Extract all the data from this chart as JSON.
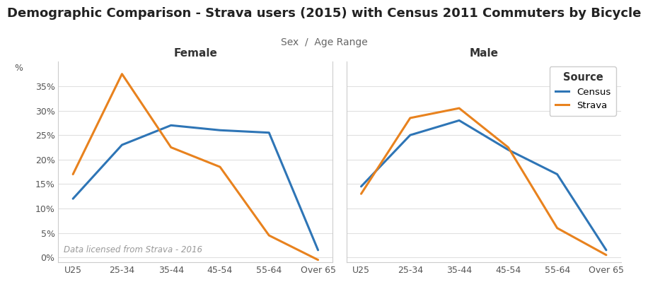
{
  "title": "Demographic Comparison - Strava users (2015) with Census 2011 Commuters by Bicycle",
  "subtitle": "Sex  /  Age Range",
  "annotation": "Data licensed from Strava - 2016",
  "ylabel": "%",
  "categories": [
    "U25",
    "25-34",
    "35-44",
    "45-54",
    "55-64",
    "Over 65"
  ],
  "female_census": [
    12,
    23,
    27,
    26,
    25.5,
    1.5
  ],
  "female_strava": [
    17,
    37.5,
    22.5,
    18.5,
    4.5,
    -0.5
  ],
  "male_census": [
    14.5,
    25,
    28,
    22,
    17,
    1.5
  ],
  "male_strava": [
    13,
    28.5,
    30.5,
    22.5,
    6,
    0.5
  ],
  "census_color": "#2E75B6",
  "strava_color": "#E8821E",
  "panel_labels": [
    "Female",
    "Male"
  ],
  "ylim": [
    -1,
    40
  ],
  "yticks": [
    0,
    5,
    10,
    15,
    20,
    25,
    30,
    35
  ],
  "ytick_labels": [
    "0%",
    "5%",
    "10%",
    "15%",
    "20%",
    "25%",
    "30%",
    "35%"
  ],
  "background_color": "#FFFFFF",
  "panel_bg": "#FFFFFF",
  "grid_color": "#E0E0E0",
  "title_fontsize": 13,
  "subtitle_fontsize": 10,
  "panel_label_fontsize": 11,
  "tick_fontsize": 9,
  "legend_title": "Source",
  "legend_entries": [
    "Census",
    "Strava"
  ],
  "line_width": 2.2
}
